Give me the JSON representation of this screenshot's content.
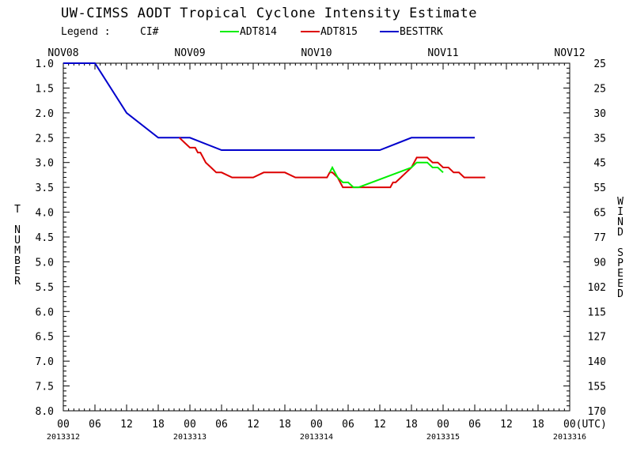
{
  "chart_data": {
    "type": "line",
    "title": "UW-CIMSS AODT Tropical Cyclone Intensity Estimate",
    "legend": {
      "label": "Legend :",
      "item0": "CI#",
      "item1": "ADT814",
      "item2": "ADT815",
      "item3": "BESTTRK",
      "placement": "top"
    },
    "ylabel_left": "T NUMBER",
    "ylabel_right": "WIND SPEED",
    "ylim": [
      1.0,
      8.0
    ],
    "y_inverted": true,
    "grid": false,
    "xlim_hours": [
      0,
      96
    ],
    "top_ticks": [
      "NOV08",
      "NOV09",
      "NOV10",
      "NOV11",
      "NOV12"
    ],
    "x_tick_labels": [
      "00",
      "06",
      "12",
      "18",
      "00",
      "06",
      "12",
      "18",
      "00",
      "06",
      "12",
      "18",
      "00",
      "06",
      "12",
      "18",
      "00(UTC)"
    ],
    "date_labels": [
      "2013312",
      "2013313",
      "2013314",
      "2013315",
      "2013316"
    ],
    "y_ticks": [
      {
        "t": 1.0,
        "left": "1.0",
        "right": "25"
      },
      {
        "t": 1.5,
        "left": "1.5",
        "right": "25"
      },
      {
        "t": 2.0,
        "left": "2.0",
        "right": "30"
      },
      {
        "t": 2.5,
        "left": "2.5",
        "right": "35"
      },
      {
        "t": 3.0,
        "left": "3.0",
        "right": "45"
      },
      {
        "t": 3.5,
        "left": "3.5",
        "right": "55"
      },
      {
        "t": 4.0,
        "left": "4.0",
        "right": "65"
      },
      {
        "t": 4.5,
        "left": "4.5",
        "right": "77"
      },
      {
        "t": 5.0,
        "left": "5.0",
        "right": "90"
      },
      {
        "t": 5.5,
        "left": "5.5",
        "right": "102"
      },
      {
        "t": 6.0,
        "left": "6.0",
        "right": "115"
      },
      {
        "t": 6.5,
        "left": "6.5",
        "right": "127"
      },
      {
        "t": 7.0,
        "left": "7.0",
        "right": "140"
      },
      {
        "t": 7.5,
        "left": "7.5",
        "right": "155"
      },
      {
        "t": 8.0,
        "left": "8.0",
        "right": "170"
      }
    ],
    "colors": {
      "ADT814": "#00ee00",
      "ADT815": "#dd0000",
      "BESTTRK": "#0000cc",
      "axis": "#000000"
    },
    "series": [
      {
        "name": "BESTTRK",
        "color": "#0000cc",
        "x": [
          0,
          6,
          12,
          18,
          24,
          30,
          36,
          42,
          48,
          54,
          60,
          66,
          72,
          78
        ],
        "y": [
          1.0,
          1.0,
          2.0,
          2.5,
          2.5,
          2.75,
          2.75,
          2.75,
          2.75,
          2.75,
          2.75,
          2.5,
          2.5,
          2.5
        ]
      },
      {
        "name": "ADT815",
        "color": "#dd0000",
        "x": [
          22,
          23,
          24,
          25,
          25.5,
          26,
          27,
          28,
          29,
          30,
          32,
          34,
          35,
          36,
          38,
          40,
          40.5,
          41,
          42,
          44,
          46,
          48,
          50,
          50.5,
          51,
          52,
          53,
          54,
          56,
          58,
          60,
          62,
          62.5,
          63,
          64,
          65,
          66,
          67,
          68,
          69,
          70,
          71,
          72,
          73,
          74,
          75,
          76,
          77,
          78,
          79,
          80
        ],
        "y": [
          2.5,
          2.6,
          2.7,
          2.7,
          2.8,
          2.8,
          3.0,
          3.1,
          3.2,
          3.2,
          3.3,
          3.3,
          3.3,
          3.3,
          3.2,
          3.2,
          3.2,
          3.2,
          3.2,
          3.3,
          3.3,
          3.3,
          3.3,
          3.2,
          3.2,
          3.3,
          3.5,
          3.5,
          3.5,
          3.5,
          3.5,
          3.5,
          3.4,
          3.4,
          3.3,
          3.2,
          3.1,
          2.9,
          2.9,
          2.9,
          3.0,
          3.0,
          3.1,
          3.1,
          3.2,
          3.2,
          3.3,
          3.3,
          3.3,
          3.3,
          3.3
        ]
      },
      {
        "name": "ADT814",
        "color": "#00ee00",
        "x": [
          50.5,
          51,
          51.5,
          52,
          53,
          54,
          55,
          56,
          66,
          67,
          68,
          69,
          70,
          71,
          72
        ],
        "y": [
          3.2,
          3.1,
          3.2,
          3.3,
          3.4,
          3.4,
          3.5,
          3.5,
          3.1,
          3.0,
          3.0,
          3.0,
          3.1,
          3.1,
          3.2
        ]
      }
    ]
  }
}
